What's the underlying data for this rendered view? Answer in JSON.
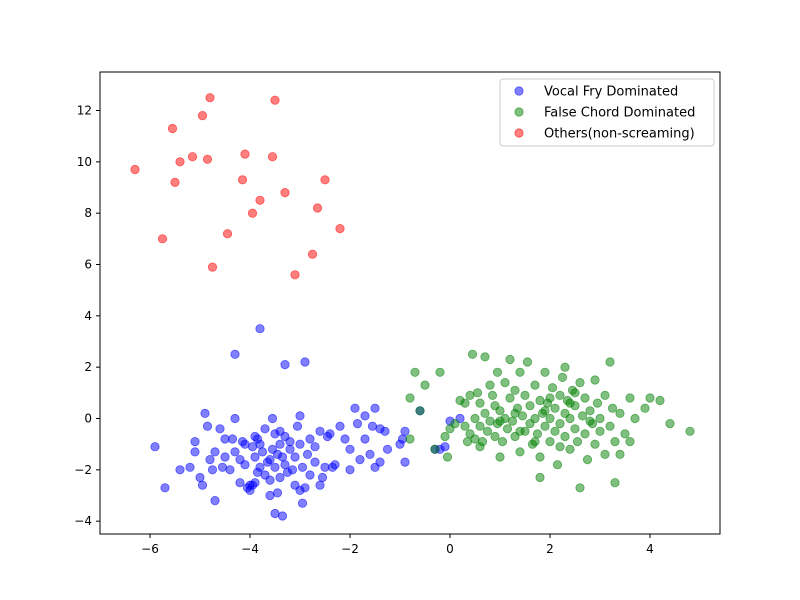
{
  "chart_data": {
    "type": "scatter",
    "title": "",
    "xlabel": "",
    "ylabel": "",
    "xlim": [
      -7,
      5.4
    ],
    "ylim": [
      -4.5,
      13.5
    ],
    "xticks": [
      -6,
      -4,
      -2,
      0,
      2,
      4
    ],
    "yticks": [
      -4,
      -2,
      0,
      2,
      4,
      6,
      8,
      10,
      12
    ],
    "xtick_labels": [
      "−6",
      "−4",
      "−2",
      "0",
      "2",
      "4"
    ],
    "ytick_labels": [
      "−4",
      "−2",
      "0",
      "2",
      "4",
      "6",
      "8",
      "10",
      "12"
    ],
    "grid": false,
    "legend_position": "top-right",
    "series": [
      {
        "name": "Vocal Fry Dominated",
        "color": "#0000ff",
        "points": [
          [
            -5.9,
            -1.1
          ],
          [
            -5.7,
            -2.7
          ],
          [
            -5.4,
            -2.0
          ],
          [
            -5.2,
            -1.9
          ],
          [
            -5.1,
            -1.3
          ],
          [
            -5.1,
            -0.9
          ],
          [
            -5.0,
            -2.3
          ],
          [
            -4.95,
            -2.6
          ],
          [
            -4.9,
            0.2
          ],
          [
            -4.85,
            -0.3
          ],
          [
            -4.8,
            -1.6
          ],
          [
            -4.75,
            -2.0
          ],
          [
            -4.7,
            -3.2
          ],
          [
            -4.7,
            -1.3
          ],
          [
            -4.6,
            -0.4
          ],
          [
            -4.55,
            -1.9
          ],
          [
            -4.5,
            -1.5
          ],
          [
            -4.5,
            -0.8
          ],
          [
            -4.4,
            -2.0
          ],
          [
            -4.35,
            -0.8
          ],
          [
            -4.3,
            0.0
          ],
          [
            -4.3,
            -1.3
          ],
          [
            -4.3,
            2.5
          ],
          [
            -4.2,
            -1.6
          ],
          [
            -4.2,
            -2.5
          ],
          [
            -4.15,
            -0.9
          ],
          [
            -4.1,
            -1.0
          ],
          [
            -4.1,
            -1.8
          ],
          [
            -4.05,
            -2.7
          ],
          [
            -4.0,
            -2.6
          ],
          [
            -4.0,
            -2.8
          ],
          [
            -3.95,
            -2.6
          ],
          [
            -3.95,
            -1.1
          ],
          [
            -3.9,
            -1.5
          ],
          [
            -3.9,
            -0.7
          ],
          [
            -3.9,
            -2.5
          ],
          [
            -3.85,
            -0.8
          ],
          [
            -3.85,
            -2.1
          ],
          [
            -3.8,
            3.5
          ],
          [
            -3.8,
            -1.0
          ],
          [
            -3.8,
            -1.9
          ],
          [
            -3.75,
            -1.3
          ],
          [
            -3.7,
            -2.2
          ],
          [
            -3.7,
            -0.4
          ],
          [
            -3.65,
            -1.7
          ],
          [
            -3.6,
            -1.6
          ],
          [
            -3.6,
            -2.4
          ],
          [
            -3.6,
            -3.0
          ],
          [
            -3.55,
            0.0
          ],
          [
            -3.55,
            -1.2
          ],
          [
            -3.5,
            -3.7
          ],
          [
            -3.5,
            -0.6
          ],
          [
            -3.5,
            -1.9
          ],
          [
            -3.45,
            -2.9
          ],
          [
            -3.45,
            -1.4
          ],
          [
            -3.4,
            -1.0
          ],
          [
            -3.4,
            -0.5
          ],
          [
            -3.4,
            -2.3
          ],
          [
            -3.35,
            -1.5
          ],
          [
            -3.35,
            -3.8
          ],
          [
            -3.3,
            2.1
          ],
          [
            -3.3,
            -0.7
          ],
          [
            -3.3,
            -1.8
          ],
          [
            -3.25,
            -2.1
          ],
          [
            -3.2,
            -1.2
          ],
          [
            -3.2,
            -0.9
          ],
          [
            -3.15,
            -2.0
          ],
          [
            -3.1,
            -2.6
          ],
          [
            -3.1,
            -1.5
          ],
          [
            -3.05,
            -0.3
          ],
          [
            -3.0,
            0.1
          ],
          [
            -3.0,
            -2.8
          ],
          [
            -3.0,
            -1.0
          ],
          [
            -2.95,
            -3.3
          ],
          [
            -2.95,
            -1.9
          ],
          [
            -2.9,
            2.2
          ],
          [
            -2.9,
            -2.7
          ],
          [
            -2.85,
            -1.4
          ],
          [
            -2.8,
            -0.8
          ],
          [
            -2.8,
            -2.2
          ],
          [
            -2.7,
            -1.1
          ],
          [
            -2.7,
            -1.7
          ],
          [
            -2.6,
            -2.6
          ],
          [
            -2.6,
            -0.5
          ],
          [
            -2.55,
            -2.3
          ],
          [
            -2.5,
            -1.9
          ],
          [
            -2.45,
            -0.7
          ],
          [
            -2.4,
            -0.6
          ],
          [
            -2.35,
            -1.9
          ],
          [
            -2.3,
            -1.8
          ],
          [
            -2.2,
            -0.3
          ],
          [
            -2.1,
            -0.8
          ],
          [
            -2.0,
            -1.2
          ],
          [
            -2.0,
            -2.0
          ],
          [
            -1.9,
            0.4
          ],
          [
            -1.85,
            -0.2
          ],
          [
            -1.8,
            -1.6
          ],
          [
            -1.7,
            -0.8
          ],
          [
            -1.7,
            0.1
          ],
          [
            -1.6,
            -1.4
          ],
          [
            -1.55,
            -0.3
          ],
          [
            -1.5,
            0.4
          ],
          [
            -1.5,
            -1.9
          ],
          [
            -1.4,
            -1.7
          ],
          [
            -1.4,
            -0.4
          ],
          [
            -1.3,
            -0.5
          ],
          [
            -1.25,
            -1.2
          ],
          [
            -1.0,
            -1.0
          ],
          [
            -0.95,
            -0.8
          ],
          [
            -0.9,
            -0.5
          ],
          [
            -0.9,
            -1.7
          ],
          [
            -0.6,
            0.3
          ],
          [
            -0.3,
            -1.2
          ],
          [
            -0.2,
            -1.2
          ],
          [
            -0.1,
            -1.1
          ],
          [
            0.0,
            -0.1
          ],
          [
            0.2,
            0.0
          ]
        ]
      },
      {
        "name": "False Chord Dominated",
        "color": "#008000",
        "points": [
          [
            -0.8,
            0.8
          ],
          [
            -0.8,
            -0.8
          ],
          [
            -0.7,
            1.8
          ],
          [
            -0.6,
            0.3
          ],
          [
            -0.5,
            1.3
          ],
          [
            -0.3,
            -1.2
          ],
          [
            -0.2,
            1.8
          ],
          [
            -0.1,
            -0.7
          ],
          [
            -0.05,
            -1.5
          ],
          [
            0.0,
            -0.4
          ],
          [
            0.1,
            -0.2
          ],
          [
            0.2,
            0.7
          ],
          [
            0.3,
            -0.3
          ],
          [
            0.35,
            -0.9
          ],
          [
            0.4,
            0.9
          ],
          [
            0.4,
            -0.6
          ],
          [
            0.45,
            2.5
          ],
          [
            0.5,
            0.0
          ],
          [
            0.5,
            -0.8
          ],
          [
            0.55,
            1.0
          ],
          [
            0.6,
            -0.3
          ],
          [
            0.6,
            0.6
          ],
          [
            0.65,
            -0.9
          ],
          [
            0.7,
            2.4
          ],
          [
            0.7,
            0.2
          ],
          [
            0.75,
            -0.5
          ],
          [
            0.8,
            1.3
          ],
          [
            0.8,
            -0.1
          ],
          [
            0.85,
            0.9
          ],
          [
            0.9,
            -0.7
          ],
          [
            0.9,
            0.5
          ],
          [
            0.95,
            1.8
          ],
          [
            0.95,
            -0.2
          ],
          [
            1.0,
            -1.5
          ],
          [
            1.0,
            0.3
          ],
          [
            1.05,
            -0.9
          ],
          [
            1.1,
            1.4
          ],
          [
            1.1,
            0.0
          ],
          [
            1.15,
            -0.4
          ],
          [
            1.2,
            0.8
          ],
          [
            1.2,
            2.3
          ],
          [
            1.25,
            -0.1
          ],
          [
            1.3,
            1.1
          ],
          [
            1.3,
            -0.7
          ],
          [
            1.35,
            0.4
          ],
          [
            1.4,
            -1.3
          ],
          [
            1.4,
            1.8
          ],
          [
            1.45,
            0.1
          ],
          [
            1.5,
            -0.5
          ],
          [
            1.5,
            0.9
          ],
          [
            1.55,
            2.2
          ],
          [
            1.6,
            -0.2
          ],
          [
            1.6,
            0.5
          ],
          [
            1.65,
            -1.0
          ],
          [
            1.7,
            1.3
          ],
          [
            1.7,
            0.0
          ],
          [
            1.75,
            -0.6
          ],
          [
            1.8,
            0.7
          ],
          [
            1.8,
            -1.5
          ],
          [
            1.85,
            0.2
          ],
          [
            1.9,
            1.8
          ],
          [
            1.9,
            -0.3
          ],
          [
            1.95,
            0.6
          ],
          [
            2.0,
            -0.9
          ],
          [
            2.0,
            0.0
          ],
          [
            2.05,
            1.2
          ],
          [
            2.1,
            -0.5
          ],
          [
            2.1,
            0.4
          ],
          [
            2.15,
            -1.8
          ],
          [
            2.2,
            0.9
          ],
          [
            2.2,
            -0.2
          ],
          [
            2.25,
            1.6
          ],
          [
            2.3,
            0.2
          ],
          [
            2.3,
            -0.7
          ],
          [
            2.35,
            0.7
          ],
          [
            2.4,
            -1.2
          ],
          [
            2.4,
            0.0
          ],
          [
            2.45,
            1.1
          ],
          [
            2.5,
            -0.4
          ],
          [
            2.5,
            0.5
          ],
          [
            2.55,
            -0.9
          ],
          [
            2.6,
            1.4
          ],
          [
            2.6,
            -2.7
          ],
          [
            2.65,
            0.1
          ],
          [
            2.7,
            -0.6
          ],
          [
            2.7,
            0.8
          ],
          [
            2.75,
            -1.6
          ],
          [
            2.8,
            0.3
          ],
          [
            2.85,
            -0.2
          ],
          [
            2.9,
            1.5
          ],
          [
            2.9,
            -1.0
          ],
          [
            2.95,
            0.6
          ],
          [
            3.0,
            -0.5
          ],
          [
            3.0,
            0.0
          ],
          [
            3.1,
            -1.4
          ],
          [
            3.1,
            0.9
          ],
          [
            3.2,
            2.2
          ],
          [
            3.2,
            -0.3
          ],
          [
            3.25,
            0.4
          ],
          [
            3.3,
            -2.5
          ],
          [
            3.3,
            -0.9
          ],
          [
            3.4,
            0.2
          ],
          [
            3.5,
            -0.6
          ],
          [
            3.6,
            0.8
          ],
          [
            3.6,
            -0.9
          ],
          [
            3.7,
            0.0
          ],
          [
            3.9,
            0.4
          ],
          [
            4.0,
            0.8
          ],
          [
            4.2,
            0.7
          ],
          [
            4.4,
            -0.2
          ],
          [
            4.8,
            -0.5
          ],
          [
            1.8,
            -2.3
          ],
          [
            2.3,
            2.0
          ],
          [
            0.3,
            0.6
          ],
          [
            1.0,
            -0.1
          ],
          [
            1.3,
            0.2
          ],
          [
            1.7,
            -0.9
          ],
          [
            2.0,
            0.8
          ],
          [
            2.2,
            -1.1
          ],
          [
            2.5,
            1.0
          ],
          [
            2.8,
            -0.1
          ],
          [
            1.4,
            -0.5
          ],
          [
            1.9,
            0.3
          ],
          [
            2.4,
            0.6
          ],
          [
            0.6,
            -1.1
          ],
          [
            3.4,
            -1.4
          ]
        ]
      },
      {
        "name": "Others(non-screaming)",
        "color": "#ff0000",
        "points": [
          [
            -6.3,
            9.7
          ],
          [
            -5.75,
            7.0
          ],
          [
            -5.55,
            11.3
          ],
          [
            -5.5,
            9.2
          ],
          [
            -5.4,
            10.0
          ],
          [
            -5.15,
            10.2
          ],
          [
            -4.95,
            11.8
          ],
          [
            -4.85,
            10.1
          ],
          [
            -4.8,
            12.5
          ],
          [
            -4.75,
            5.9
          ],
          [
            -4.45,
            7.2
          ],
          [
            -4.15,
            9.3
          ],
          [
            -4.1,
            10.3
          ],
          [
            -3.95,
            8.0
          ],
          [
            -3.8,
            8.5
          ],
          [
            -3.55,
            10.2
          ],
          [
            -3.5,
            12.4
          ],
          [
            -3.3,
            8.8
          ],
          [
            -3.1,
            5.6
          ],
          [
            -2.75,
            6.4
          ],
          [
            -2.65,
            8.2
          ],
          [
            -2.5,
            9.3
          ],
          [
            -2.2,
            7.4
          ]
        ]
      }
    ]
  }
}
